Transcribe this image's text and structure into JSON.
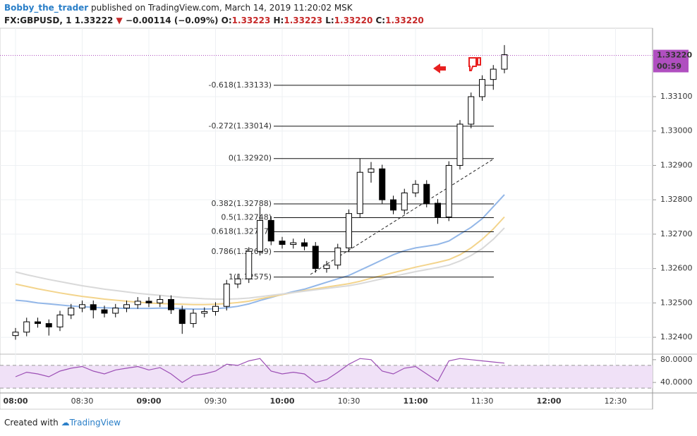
{
  "header": {
    "user": "Bobby_the_trader",
    "published": "published on TradingView.com, March 14, 2019 11:20:02 MSK",
    "symbol": "FX:GBPUSD, 1",
    "last": "1.33222",
    "change": "−0.00114 (−0.09%)",
    "o_label": "O:",
    "o": "1.33223",
    "h_label": "H:",
    "h": "1.33223",
    "l_label": "L:",
    "l": "1.33220",
    "c_label": "C:",
    "c": "1.33220"
  },
  "footer": {
    "created": "Created with",
    "brand": "TradingView"
  },
  "chart_data": {
    "type": "candlestick",
    "categories": [
      "08:00",
      null,
      null,
      null,
      null,
      null,
      "08:30",
      null,
      null,
      null,
      null,
      null,
      "09:00",
      null,
      null,
      null,
      null,
      null,
      "09:30",
      null,
      null,
      null,
      null,
      null,
      "10:00",
      null,
      null,
      null,
      null,
      null,
      "10:30",
      null,
      null,
      null,
      null,
      null,
      "11:00",
      null,
      null,
      null,
      null,
      null,
      "11:30",
      null,
      null,
      null,
      null,
      null,
      "12:00",
      null,
      null,
      null,
      null,
      null,
      "12:30",
      null,
      null,
      null
    ],
    "open": [
      1.32405,
      1.32415,
      1.32445,
      1.3244,
      1.3243,
      1.32465,
      1.32485,
      1.32495,
      1.3248,
      1.3247,
      1.32485,
      1.32495,
      1.32505,
      1.325,
      1.3251,
      1.3248,
      1.3244,
      1.3247,
      1.32475,
      1.3249,
      1.32555,
      1.3257,
      1.3265,
      1.3274,
      1.3268,
      1.3267,
      1.32675,
      1.32665,
      1.326,
      1.3261,
      1.3266,
      1.3276,
      1.3288,
      1.3289,
      1.328,
      1.3277,
      1.3282,
      1.32845,
      1.3279,
      1.3275,
      1.329,
      1.3302,
      1.331,
      1.3315,
      1.3318,
      null,
      null,
      null,
      null,
      null,
      null,
      null,
      null,
      null,
      null,
      null,
      null,
      null
    ],
    "high": [
      1.32427,
      1.32457,
      1.32457,
      1.32452,
      1.32477,
      1.32497,
      1.32507,
      1.32507,
      1.32492,
      1.32497,
      1.32507,
      1.32517,
      1.32517,
      1.32522,
      1.32522,
      1.32492,
      1.32482,
      1.32487,
      1.32502,
      1.32567,
      1.32582,
      1.32662,
      1.3278,
      1.32752,
      1.32692,
      1.32687,
      1.32687,
      1.32677,
      1.32622,
      1.32672,
      1.32772,
      1.3292,
      1.3291,
      1.32902,
      1.32812,
      1.32832,
      1.32857,
      1.32857,
      1.32802,
      1.32912,
      1.33032,
      1.33112,
      1.33162,
      1.33192,
      1.3325,
      null,
      null,
      null,
      null,
      null,
      null,
      null,
      null,
      null,
      null,
      null,
      null,
      null
    ],
    "low": [
      1.32393,
      1.32403,
      1.32428,
      1.32405,
      1.32418,
      1.32453,
      1.32473,
      1.32455,
      1.32458,
      1.32458,
      1.32473,
      1.32483,
      1.32488,
      1.32488,
      1.32468,
      1.3241,
      1.32428,
      1.32458,
      1.32463,
      1.32478,
      1.32543,
      1.32558,
      1.32638,
      1.32668,
      1.32658,
      1.32658,
      1.32653,
      1.32588,
      1.32588,
      1.32598,
      1.32648,
      1.32748,
      1.3285,
      1.32788,
      1.32758,
      1.32758,
      1.32808,
      1.32778,
      1.3273,
      1.32738,
      1.32888,
      1.33008,
      1.33088,
      1.3312,
      1.33168,
      null,
      null,
      null,
      null,
      null,
      null,
      null,
      null,
      null,
      null,
      null,
      null,
      null
    ],
    "close": [
      1.32415,
      1.32445,
      1.3244,
      1.3243,
      1.32465,
      1.32485,
      1.32495,
      1.3248,
      1.3247,
      1.32485,
      1.32495,
      1.32505,
      1.325,
      1.3251,
      1.3248,
      1.3244,
      1.3247,
      1.32475,
      1.3249,
      1.32555,
      1.3257,
      1.3265,
      1.3274,
      1.3268,
      1.3267,
      1.32675,
      1.32665,
      1.326,
      1.3261,
      1.3266,
      1.3276,
      1.3288,
      1.3289,
      1.328,
      1.3277,
      1.3282,
      1.32845,
      1.3279,
      1.3275,
      1.329,
      1.3302,
      1.331,
      1.3315,
      1.3318,
      1.33222,
      null,
      null,
      null,
      null,
      null,
      null,
      null,
      null,
      null,
      null,
      null,
      null,
      null
    ],
    "up_color": "#ffffff",
    "down_color": "#000000",
    "outline_color": "#000000",
    "moving_averages": [
      {
        "color": "#93b7e8",
        "values": [
          1.32508,
          1.32505,
          1.325,
          1.32497,
          1.32494,
          1.32491,
          1.32489,
          1.32487,
          1.32486,
          1.32485,
          1.32484,
          1.32484,
          1.32484,
          1.32485,
          1.32485,
          1.32483,
          1.32482,
          1.32482,
          1.32483,
          1.32486,
          1.3249,
          1.32497,
          1.32507,
          1.32516,
          1.32525,
          1.32533,
          1.3254,
          1.3255,
          1.3256,
          1.3257,
          1.3258,
          1.32595,
          1.3261,
          1.32625,
          1.3264,
          1.32652,
          1.3266,
          1.32665,
          1.3267,
          1.3268,
          1.327,
          1.3272,
          1.32745,
          1.3278,
          1.32815,
          null,
          null,
          null,
          null,
          null,
          null,
          null,
          null,
          null,
          null,
          null,
          null,
          null
        ]
      },
      {
        "color": "#f3d48c",
        "values": [
          1.32555,
          1.32548,
          1.32541,
          1.32535,
          1.32529,
          1.32524,
          1.32519,
          1.32515,
          1.32511,
          1.32508,
          1.32505,
          1.32502,
          1.325,
          1.32498,
          1.32497,
          1.32496,
          1.32495,
          1.32495,
          1.32496,
          1.32498,
          1.32501,
          1.32505,
          1.32512,
          1.32518,
          1.32524,
          1.3253,
          1.32536,
          1.32541,
          1.32546,
          1.32551,
          1.32556,
          1.32563,
          1.32572,
          1.3258,
          1.32588,
          1.32596,
          1.32604,
          1.32611,
          1.32618,
          1.32626,
          1.3264,
          1.3266,
          1.32685,
          1.32715,
          1.3275,
          null,
          null,
          null,
          null,
          null,
          null,
          null,
          null,
          null,
          null,
          null,
          null,
          null
        ]
      },
      {
        "color": "#d9d9d9",
        "values": [
          1.3259,
          1.32582,
          1.32575,
          1.32568,
          1.32562,
          1.32556,
          1.3255,
          1.32545,
          1.3254,
          1.32536,
          1.32532,
          1.32528,
          1.32525,
          1.32522,
          1.32519,
          1.32516,
          1.32514,
          1.32512,
          1.32511,
          1.32511,
          1.32512,
          1.32514,
          1.32518,
          1.32522,
          1.32526,
          1.3253,
          1.32534,
          1.32538,
          1.32542,
          1.32546,
          1.3255,
          1.32556,
          1.32563,
          1.3257,
          1.32577,
          1.32584,
          1.32591,
          1.32597,
          1.32603,
          1.3261,
          1.32622,
          1.32638,
          1.32658,
          1.32685,
          1.32718,
          null,
          null,
          null,
          null,
          null,
          null,
          null,
          null,
          null,
          null,
          null,
          null,
          null
        ]
      }
    ],
    "ylim": [
      1.32355,
      1.33295
    ],
    "yticks": [
      {
        "value": 1.324,
        "label": "1.32400"
      },
      {
        "value": 1.325,
        "label": "1.32500"
      },
      {
        "value": 1.326,
        "label": "1.32600"
      },
      {
        "value": 1.327,
        "label": "1.32700"
      },
      {
        "value": 1.328,
        "label": "1.32800"
      },
      {
        "value": 1.329,
        "label": "1.32900"
      },
      {
        "value": 1.33,
        "label": "1.33000"
      },
      {
        "value": 1.331,
        "label": "1.33100"
      }
    ],
    "grid": true,
    "fib_levels": [
      {
        "label": "-0.618(1.33133)",
        "value": 1.33133
      },
      {
        "label": "-0.272(1.33014)",
        "value": 1.33014
      },
      {
        "label": "0(1.32920)",
        "value": 1.3292
      },
      {
        "label": "0.382(1.32788)",
        "value": 1.32788
      },
      {
        "label": "0.5(1.32748)",
        "value": 1.32748
      },
      {
        "label": "0.618(1.32707)",
        "value": 1.32707
      },
      {
        "label": "0.786(1.32649)",
        "value": 1.32649
      },
      {
        "label": "1(1.32575)",
        "value": 1.32575
      }
    ],
    "current_price": {
      "value": 1.3322,
      "label": "1.33220",
      "countdown": "00:59",
      "color": "#b04fc0"
    },
    "rsi": {
      "color": "#9c4fb5",
      "band_color": "#f0e1f7",
      "bands": [
        30,
        70
      ],
      "values": [
        50,
        58,
        55,
        50,
        60,
        65,
        68,
        60,
        55,
        62,
        65,
        68,
        62,
        66,
        55,
        40,
        52,
        55,
        60,
        72,
        70,
        78,
        82,
        60,
        55,
        58,
        55,
        40,
        45,
        58,
        72,
        82,
        80,
        60,
        55,
        65,
        68,
        55,
        42,
        78,
        82,
        80,
        78,
        76,
        74,
        null,
        null,
        null,
        null,
        null,
        null,
        null,
        null,
        null,
        null,
        null,
        null,
        null
      ],
      "ylim": [
        24,
        86
      ],
      "yticks": [
        {
          "value": 80,
          "label": "80.0000"
        },
        {
          "value": 40,
          "label": "40.0000"
        }
      ]
    }
  }
}
